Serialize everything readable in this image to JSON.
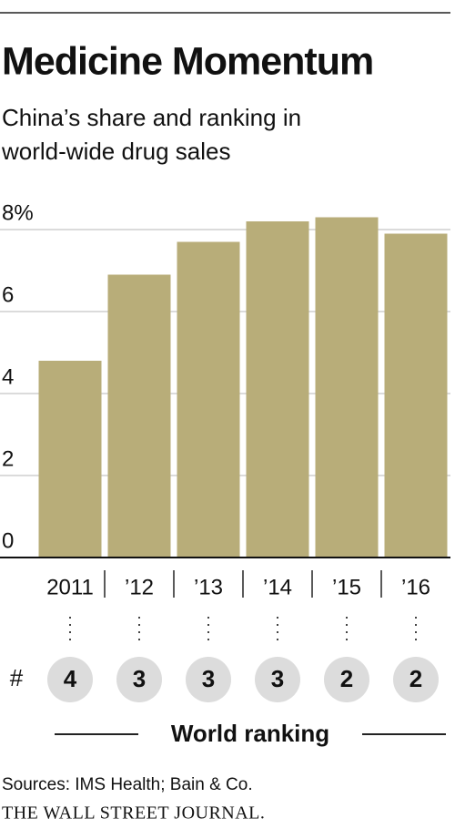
{
  "chart_data": {
    "type": "bar",
    "title": "Medicine Momentum",
    "subtitle": [
      "China’s share and ranking in",
      "world-wide drug sales"
    ],
    "categories": [
      "2011",
      "’12",
      "’13",
      "’14",
      "’15",
      "’16"
    ],
    "values": [
      4.8,
      6.9,
      7.7,
      8.2,
      8.3,
      7.9
    ],
    "color": "#b8ad79",
    "ylim": [
      0,
      8.5
    ],
    "yticks": [
      0,
      2,
      4,
      6,
      {
        "value": 8,
        "label": "8%"
      }
    ],
    "grid": true,
    "ranking_symbol": "#",
    "rankings": [
      4,
      3,
      3,
      3,
      2,
      2
    ],
    "ranking_label": "World ranking",
    "source": "Sources: IMS Health; Bain & Co.",
    "publisher": "THE WALL STREET JOURNAL."
  }
}
